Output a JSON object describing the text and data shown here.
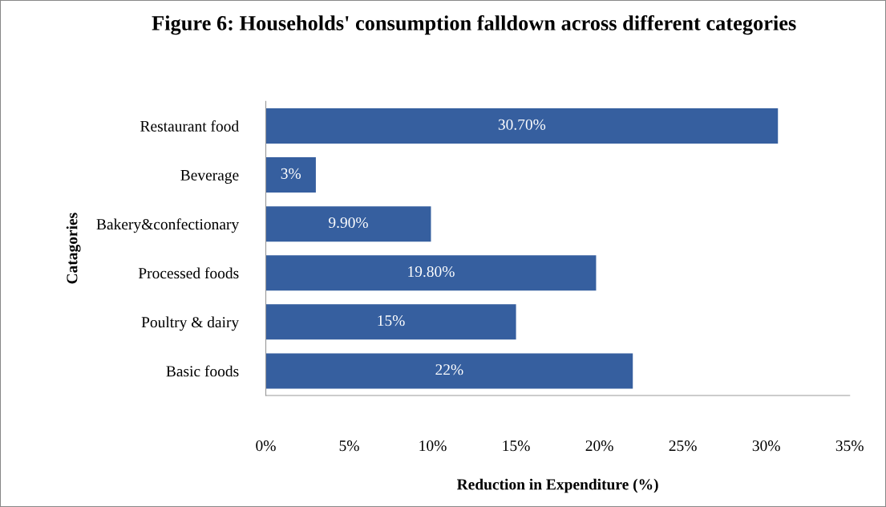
{
  "chart_data": {
    "type": "bar",
    "orientation": "horizontal",
    "title": "Figure 6: Households' consumption falldown across different categories",
    "xlabel": "Reduction in Expenditure (%)",
    "ylabel": "Catagories",
    "categories": [
      "Restaurant food",
      "Beverage",
      "Bakery&confectionary",
      "Processed foods",
      "Poultry & dairy",
      "Basic foods"
    ],
    "values": [
      30.7,
      3,
      9.9,
      19.8,
      15,
      22
    ],
    "value_labels": [
      "30.70%",
      "3%",
      "9.90%",
      "19.80%",
      "15%",
      "22%"
    ],
    "color": "#365f9f",
    "xlim": [
      0,
      35
    ],
    "xticks": [
      {
        "value": 0,
        "label": "0%"
      },
      {
        "value": 5,
        "label": "5%"
      },
      {
        "value": 10,
        "label": "10%"
      },
      {
        "value": 15,
        "label": "15%"
      },
      {
        "value": 20,
        "label": "20%"
      },
      {
        "value": 25,
        "label": "25%"
      },
      {
        "value": 30,
        "label": "30%"
      },
      {
        "value": 35,
        "label": "35%"
      }
    ],
    "grid": false,
    "legend": false
  }
}
